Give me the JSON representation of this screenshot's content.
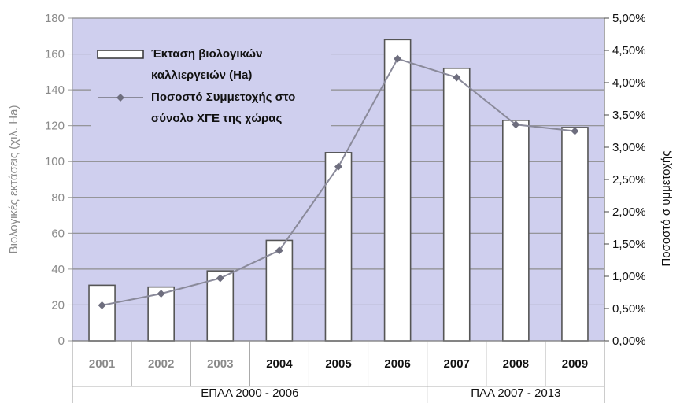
{
  "chart_data": {
    "type": "bar",
    "categories": [
      "2001",
      "2002",
      "2003",
      "2004",
      "2005",
      "2006",
      "2007",
      "2008",
      "2009"
    ],
    "series": [
      {
        "name": "Έκταση βιολογικών καλλιεργειών (Ha)",
        "legend_lines": [
          "Έκταση βιολογικών",
          "καλλιεργειών (Ha)"
        ],
        "type": "bar",
        "axis": "left",
        "values": [
          31,
          30,
          39,
          56,
          105,
          168,
          152,
          123,
          119
        ]
      },
      {
        "name": "Ποσοστό Συμμετοχής στο σύνολο ΧΓΕ της χώρας",
        "legend_lines": [
          "Ποσοστό Συμμετοχής στο",
          "σύνολο ΧΓΕ της χώρας"
        ],
        "type": "line",
        "axis": "right",
        "values": [
          0.55,
          0.73,
          0.97,
          1.4,
          2.7,
          4.37,
          4.08,
          3.35,
          3.25
        ]
      }
    ],
    "ylabel": "Βιολογικές εκτάσεις (χιλ. Ha)",
    "y2label": "Ποσοστό σ υμμετοχής",
    "ylim": [
      0,
      180
    ],
    "y_ticks": [
      0,
      20,
      40,
      60,
      80,
      100,
      120,
      140,
      160,
      180
    ],
    "y2lim": [
      0,
      5
    ],
    "y2_ticks": [
      "0,00%",
      "0,50%",
      "1,00%",
      "1,50%",
      "2,00%",
      "2,50%",
      "3,00%",
      "3,50%",
      "4,00%",
      "4,50%",
      "5,00%"
    ],
    "periods": [
      {
        "label": "ΕΠΑΑ 2000 - 2006",
        "from": 0,
        "to": 5
      },
      {
        "label": "ΠΑΑ 2007 - 2013",
        "from": 6,
        "to": 8
      }
    ],
    "dim_categories": 3,
    "grid": true,
    "legend_position": "top-left"
  },
  "colors": {
    "plot_bg": "#cfcfee",
    "grid": "#8d8d8d",
    "bar_fill": "#ffffff",
    "bar_stroke": "#555555",
    "line": "#8a8a9a",
    "marker": "#6e6e7e"
  }
}
